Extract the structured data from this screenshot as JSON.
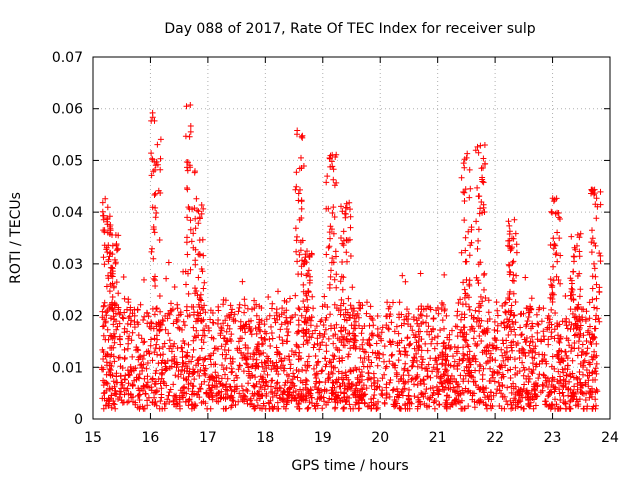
{
  "chart_data": {
    "type": "scatter",
    "title": "Day 088 of 2017, Rate Of TEC Index for receiver sulp",
    "xlabel": "GPS time / hours",
    "ylabel": "ROTI / TECUs",
    "xlim": [
      15,
      24
    ],
    "ylim": [
      0,
      0.07
    ],
    "x_ticks": [
      "15",
      "16",
      "17",
      "18",
      "19",
      "20",
      "21",
      "22",
      "23",
      "24"
    ],
    "y_ticks": [
      "0",
      "0.01",
      "0.02",
      "0.03",
      "0.04",
      "0.05",
      "0.06",
      "0.07"
    ],
    "grid": true,
    "marker": "plus",
    "colors": {
      "series": "#ff0000",
      "grid": "#b0b0b0",
      "axis": "#000000"
    },
    "series": [
      {
        "name": "ROTI",
        "points_note": "dense cloud of measurements, baseline ~0.005–0.02 with spikes",
        "baseline_range": [
          0.003,
          0.022
        ],
        "spikes": [
          {
            "x": 15.25,
            "peak": 0.043
          },
          {
            "x": 15.35,
            "peak": 0.038
          },
          {
            "x": 16.1,
            "peak": 0.06
          },
          {
            "x": 16.7,
            "peak": 0.061
          },
          {
            "x": 16.85,
            "peak": 0.045
          },
          {
            "x": 18.6,
            "peak": 0.056
          },
          {
            "x": 18.75,
            "peak": 0.033
          },
          {
            "x": 19.15,
            "peak": 0.053
          },
          {
            "x": 19.4,
            "peak": 0.042
          },
          {
            "x": 21.5,
            "peak": 0.052
          },
          {
            "x": 21.75,
            "peak": 0.054
          },
          {
            "x": 22.3,
            "peak": 0.04
          },
          {
            "x": 23.05,
            "peak": 0.044
          },
          {
            "x": 23.4,
            "peak": 0.036
          },
          {
            "x": 23.75,
            "peak": 0.045
          }
        ]
      }
    ]
  }
}
